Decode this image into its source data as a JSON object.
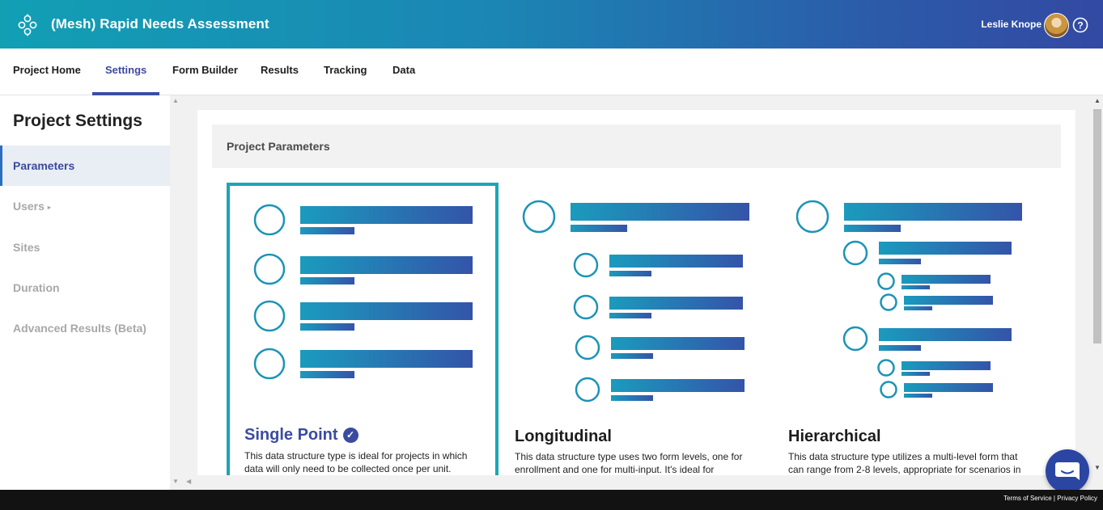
{
  "header": {
    "app_title": "(Mesh) Rapid Needs Assessment",
    "user_name": "Leslie Knope"
  },
  "nav": {
    "tabs": [
      {
        "label": "Project Home"
      },
      {
        "label": "Settings"
      },
      {
        "label": "Form Builder"
      },
      {
        "label": "Results"
      },
      {
        "label": "Tracking"
      },
      {
        "label": "Data"
      }
    ],
    "active_tab": "Settings"
  },
  "sidebar": {
    "title": "Project Settings",
    "items": [
      {
        "label": "Parameters"
      },
      {
        "label": "Users"
      },
      {
        "label": "Sites"
      },
      {
        "label": "Duration"
      },
      {
        "label": "Advanced Results (Beta)"
      }
    ],
    "active_item": "Parameters"
  },
  "main": {
    "section_title": "Project Parameters",
    "cards": [
      {
        "title": "Single Point",
        "description": "This data structure type is ideal for projects in which data will only need to be collected once per unit.",
        "selected": true
      },
      {
        "title": "Longitudinal",
        "description": "This data structure type uses two form levels, one for enrollment and one for multi-input. It's ideal for",
        "selected": false
      },
      {
        "title": "Hierarchical",
        "description": "This data structure type utilizes a multi-level form that can range from 2-8 levels, appropriate for scenarios in",
        "selected": false
      }
    ]
  },
  "footer": {
    "terms": "Terms of Service",
    "privacy": "Privacy Policy"
  },
  "colors": {
    "brand_teal": "#129fb4",
    "brand_indigo": "#3349a3",
    "selected_border": "#1ba5b7",
    "active_text": "#3b4ba0"
  }
}
